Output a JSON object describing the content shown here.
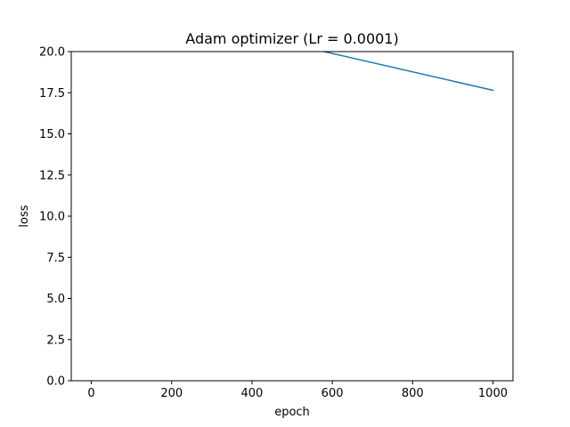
{
  "chart_data": {
    "type": "line",
    "title": "Adam optimizer (Lr = 0.0001)",
    "xlabel": "epoch",
    "ylabel": "loss",
    "xlim": [
      -50,
      1050
    ],
    "ylim": [
      0.0,
      20.0
    ],
    "xticks": [
      0,
      200,
      400,
      600,
      800,
      1000
    ],
    "xtick_labels": [
      "0",
      "200",
      "400",
      "600",
      "800",
      "1000"
    ],
    "yticks": [
      0.0,
      2.5,
      5.0,
      7.5,
      10.0,
      12.5,
      15.0,
      17.5,
      20.0
    ],
    "ytick_labels": [
      "0.0",
      "2.5",
      "5.0",
      "7.5",
      "10.0",
      "12.5",
      "15.0",
      "17.5",
      "20.0"
    ],
    "grid": false,
    "series": [
      {
        "color": "#1f77b4",
        "x": [
          580,
          1000
        ],
        "y": [
          20.0,
          17.65
        ]
      }
    ]
  }
}
